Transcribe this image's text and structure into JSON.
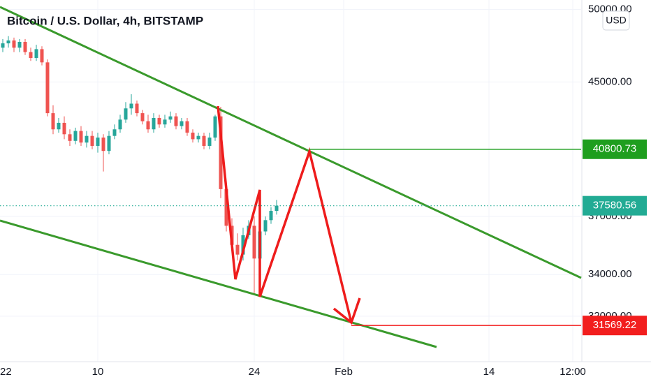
{
  "chart_data": {
    "type": "candlestick",
    "title": "Bitcoin / U.S. Dollar, 4h, BITSTAMP",
    "currency": "USD",
    "x": [
      1.5,
      2,
      2.5,
      3,
      3.5,
      4,
      4.5,
      5,
      5.5,
      6,
      6.5,
      7,
      7.5,
      8,
      8.5,
      9,
      9.5,
      10,
      10.5,
      11,
      11.5,
      12,
      12.5,
      13,
      13.5,
      14,
      14.5,
      15,
      15.5,
      16,
      16.5,
      17,
      17.5,
      18,
      18.5,
      19,
      19.5,
      20,
      20.5,
      21,
      21.5,
      22,
      22.5,
      23,
      23.5,
      24,
      24.5,
      25,
      25.5,
      26
    ],
    "open": [
      47300,
      47600,
      47800,
      47300,
      47700,
      47000,
      46600,
      47200,
      46300,
      43000,
      42000,
      42400,
      41700,
      41300,
      41900,
      41200,
      41600,
      41000,
      41500,
      40700,
      41600,
      42000,
      42600,
      43300,
      43600,
      43000,
      42500,
      42000,
      42700,
      42300,
      42600,
      42800,
      42200,
      42500,
      41800,
      41400,
      41600,
      41000,
      41500,
      42800,
      38500,
      36500,
      35500,
      35000,
      36000,
      36500,
      34800,
      36200,
      36800,
      37300
    ],
    "high": [
      47900,
      48100,
      48000,
      47900,
      47900,
      47300,
      47500,
      47400,
      46500,
      43500,
      42700,
      42800,
      42000,
      42100,
      42200,
      41900,
      41900,
      41800,
      41700,
      41900,
      42300,
      42900,
      43700,
      44200,
      43800,
      43200,
      42900,
      43000,
      42900,
      42900,
      43100,
      43000,
      42700,
      42700,
      42000,
      41800,
      41800,
      41800,
      42900,
      43400,
      38900,
      36900,
      36100,
      36400,
      36800,
      37000,
      36600,
      37000,
      37500,
      37900
    ],
    "low": [
      47000,
      47300,
      47000,
      47000,
      46800,
      46400,
      46400,
      46100,
      42800,
      41700,
      41800,
      41400,
      41000,
      41100,
      41000,
      40900,
      40800,
      40600,
      39500,
      40500,
      41400,
      41800,
      42400,
      42900,
      42800,
      42300,
      41800,
      41800,
      42100,
      42100,
      42400,
      42000,
      42000,
      41600,
      41200,
      41200,
      40800,
      40800,
      41300,
      38000,
      36200,
      35200,
      34700,
      34700,
      35800,
      33100,
      34600,
      36000,
      36600,
      37100
    ],
    "close": [
      47600,
      47800,
      47300,
      47700,
      47000,
      46600,
      47200,
      46300,
      43000,
      42000,
      42400,
      41700,
      41300,
      41900,
      41200,
      41600,
      41000,
      41500,
      40700,
      41600,
      42000,
      42600,
      43300,
      43600,
      43000,
      42500,
      42000,
      42700,
      42300,
      42600,
      42800,
      42200,
      42500,
      41800,
      41400,
      41600,
      41000,
      41500,
      42800,
      38500,
      36500,
      35500,
      35000,
      36000,
      36500,
      34800,
      36200,
      36800,
      37300,
      37580.56
    ],
    "up_color": "#26a69a",
    "down_color": "#ef5350",
    "log_scale": true,
    "grid": true,
    "xlim": [
      1.25,
      53.25
    ],
    "xticks": [
      {
        "value": 1,
        "label": "22"
      },
      10,
      24,
      {
        "value": 32,
        "label": "Feb"
      },
      {
        "value": 45,
        "label": "14"
      },
      {
        "value": 52.5,
        "label": "12:00"
      }
    ],
    "ylim": [
      29950,
      50700
    ],
    "yticks": [
      {
        "value": 50000,
        "label": "50000.00"
      },
      {
        "value": 45000,
        "label": "45000.00"
      },
      {
        "value": 37000,
        "label": "37000.00"
      },
      {
        "value": 34000,
        "label": "34000.00"
      },
      {
        "value": 32000,
        "label": "32000.00"
      }
    ],
    "price_labels": [
      {
        "value": 40800.73,
        "color": "#1e9e1e"
      },
      {
        "value": 37580.56,
        "color": "#22ab94"
      },
      {
        "value": 31569.22,
        "color": "#f21e1e"
      }
    ]
  }
}
